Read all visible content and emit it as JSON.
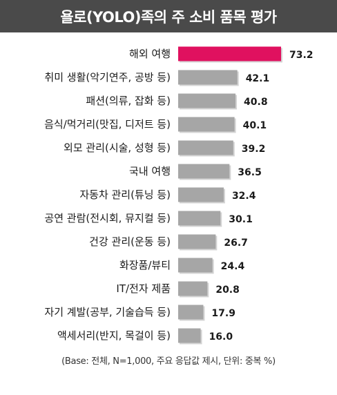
{
  "chart_data": {
    "type": "bar",
    "orientation": "horizontal",
    "title": "욜로(YOLO)족의 주 소비 품목 평가",
    "categories": [
      "해외 여행",
      "취미 생활(악기연주, 공방 등)",
      "패션(의류, 잡화 등)",
      "음식/먹거리(맛집, 디저트 등)",
      "외모 관리(시술, 성형 등)",
      "국내 여행",
      "자동차 관리(튜닝 등)",
      "공연 관람(전시회, 뮤지컬 등)",
      "건강 관리(운동 등)",
      "화장품/뷰티",
      "IT/전자 제품",
      "자기 계발(공부, 기술습득 등)",
      "액세서리(반지, 목걸이 등)"
    ],
    "values": [
      73.2,
      42.1,
      40.8,
      40.1,
      39.2,
      36.5,
      32.4,
      30.1,
      26.7,
      24.4,
      20.8,
      17.9,
      16.0
    ],
    "value_labels": [
      "73.2",
      "42.1",
      "40.8",
      "40.1",
      "39.2",
      "36.5",
      "32.4",
      "30.1",
      "26.7",
      "24.4",
      "20.8",
      "17.9",
      "16.0"
    ],
    "xlim": [
      0,
      73.2
    ],
    "highlight_color": "#e0115f",
    "bar_color": "#a6a6a6",
    "grid": false,
    "footnote": "(Base: 전체, N=1,000, 주요 응답값 제시, 단위: 중복 %)"
  }
}
